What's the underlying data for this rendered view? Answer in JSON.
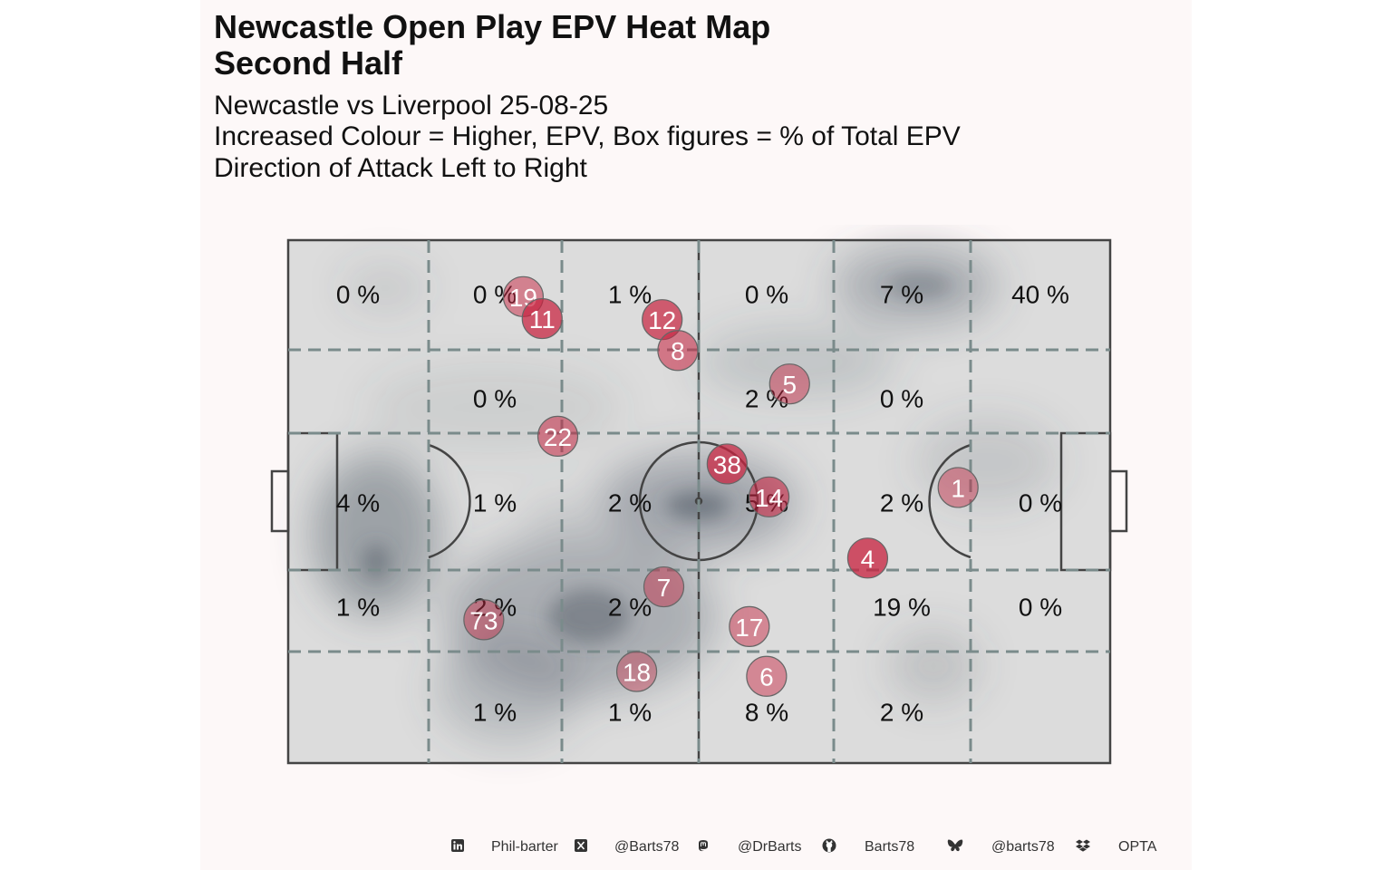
{
  "header": {
    "title_line1": "Newcastle Open Play EPV Heat Map",
    "title_line2": "Second Half",
    "subtitle_line1": "Newcastle vs Liverpool 25-08-25",
    "subtitle_line2": "Increased Colour = Higher, EPV, Box figures = % of Total EPV",
    "subtitle_line3": "Direction of Attack Left to Right"
  },
  "chart_data": {
    "type": "heatmap",
    "zone_rows": 5,
    "zone_cols": 6,
    "zone_percentages": [
      [
        "0 %",
        "0 %",
        "1 %",
        "0 %",
        "7 %",
        "40 %"
      ],
      [
        "",
        "0 %",
        "",
        "2 %",
        "0 %",
        ""
      ],
      [
        "4 %",
        "1 %",
        "2 %",
        "5 %",
        "2 %",
        "0 %"
      ],
      [
        "1 %",
        "2 %",
        "2 %",
        "",
        "19 %",
        "0 %"
      ],
      [
        "",
        "1 %",
        "1 %",
        "8 %",
        "2 %",
        ""
      ]
    ],
    "players": [
      {
        "number": "19",
        "x": 0.286,
        "y": 0.108,
        "intensity": 0.4
      },
      {
        "number": "11",
        "x": 0.309,
        "y": 0.15,
        "intensity": 0.8
      },
      {
        "number": "12",
        "x": 0.455,
        "y": 0.152,
        "intensity": 0.75
      },
      {
        "number": "8",
        "x": 0.474,
        "y": 0.211,
        "intensity": 0.5
      },
      {
        "number": "5",
        "x": 0.61,
        "y": 0.275,
        "intensity": 0.35
      },
      {
        "number": "22",
        "x": 0.328,
        "y": 0.375,
        "intensity": 0.45
      },
      {
        "number": "38",
        "x": 0.534,
        "y": 0.428,
        "intensity": 0.8
      },
      {
        "number": "14",
        "x": 0.585,
        "y": 0.491,
        "intensity": 0.55
      },
      {
        "number": "1",
        "x": 0.815,
        "y": 0.473,
        "intensity": 0.3
      },
      {
        "number": "4",
        "x": 0.705,
        "y": 0.608,
        "intensity": 0.85
      },
      {
        "number": "7",
        "x": 0.457,
        "y": 0.663,
        "intensity": 0.3
      },
      {
        "number": "73",
        "x": 0.238,
        "y": 0.726,
        "intensity": 0.3
      },
      {
        "number": "17",
        "x": 0.561,
        "y": 0.739,
        "intensity": 0.35
      },
      {
        "number": "18",
        "x": 0.424,
        "y": 0.825,
        "intensity": 0.2
      },
      {
        "number": "6",
        "x": 0.582,
        "y": 0.834,
        "intensity": 0.35
      }
    ],
    "colors": {
      "pitch": "#dcdcdc",
      "pitch_line": "#444444",
      "zone_line": "#7a8b8b",
      "density": "#4f5a66",
      "player_fill": "#c8223f",
      "background": "#fdf8f8"
    }
  },
  "footer": {
    "linkedin_icon": "linkedin-icon",
    "linkedin": "Phil-barter",
    "x_icon": "x-icon",
    "x_handle": "@Barts78",
    "mastodon_icon": "mastodon-icon",
    "mastodon": "@DrBarts",
    "github_icon": "github-icon",
    "github": "Barts78",
    "bluesky_icon": "bluesky-icon",
    "bluesky": "@barts78",
    "dropbox_icon": "dropbox-icon",
    "source": "OPTA"
  }
}
